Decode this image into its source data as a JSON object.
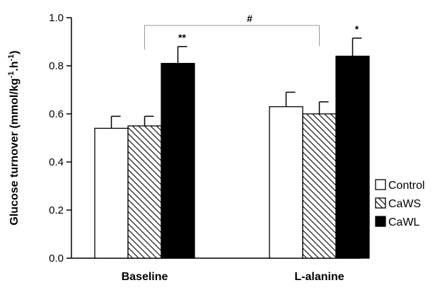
{
  "chart_data": {
    "type": "bar",
    "title": "",
    "xlabel": "",
    "ylabel": {
      "main": "Glucose turnover (mmol/kg",
      "sup1": "-1",
      "mid": ".h",
      "sup2": "-1",
      "end": ")"
    },
    "ylim": [
      0,
      1.0
    ],
    "yticks": [
      "0.0",
      "0.2",
      "0.4",
      "0.6",
      "0.8",
      "1.0"
    ],
    "categories": [
      "Baseline",
      "L-alanine"
    ],
    "series": [
      {
        "name": "Control",
        "values": [
          0.54,
          0.63
        ],
        "errors": [
          0.05,
          0.06
        ],
        "fill": "white"
      },
      {
        "name": "CaWS",
        "values": [
          0.55,
          0.6
        ],
        "errors": [
          0.04,
          0.05
        ],
        "fill": "hatch"
      },
      {
        "name": "CaWL",
        "values": [
          0.81,
          0.84
        ],
        "errors": [
          0.07,
          0.075
        ],
        "fill": "black"
      }
    ],
    "annotations": [
      {
        "text": "**",
        "category": 0,
        "series": 2
      },
      {
        "text": "*",
        "category": 1,
        "series": 2
      },
      {
        "text": "#",
        "bracket": [
          0,
          1
        ]
      }
    ],
    "legend_position": "right",
    "grid": false
  },
  "colors": {
    "axis": "#000000",
    "bar_black": "#000000",
    "bar_white": "#ffffff",
    "bracket": "#999999"
  }
}
